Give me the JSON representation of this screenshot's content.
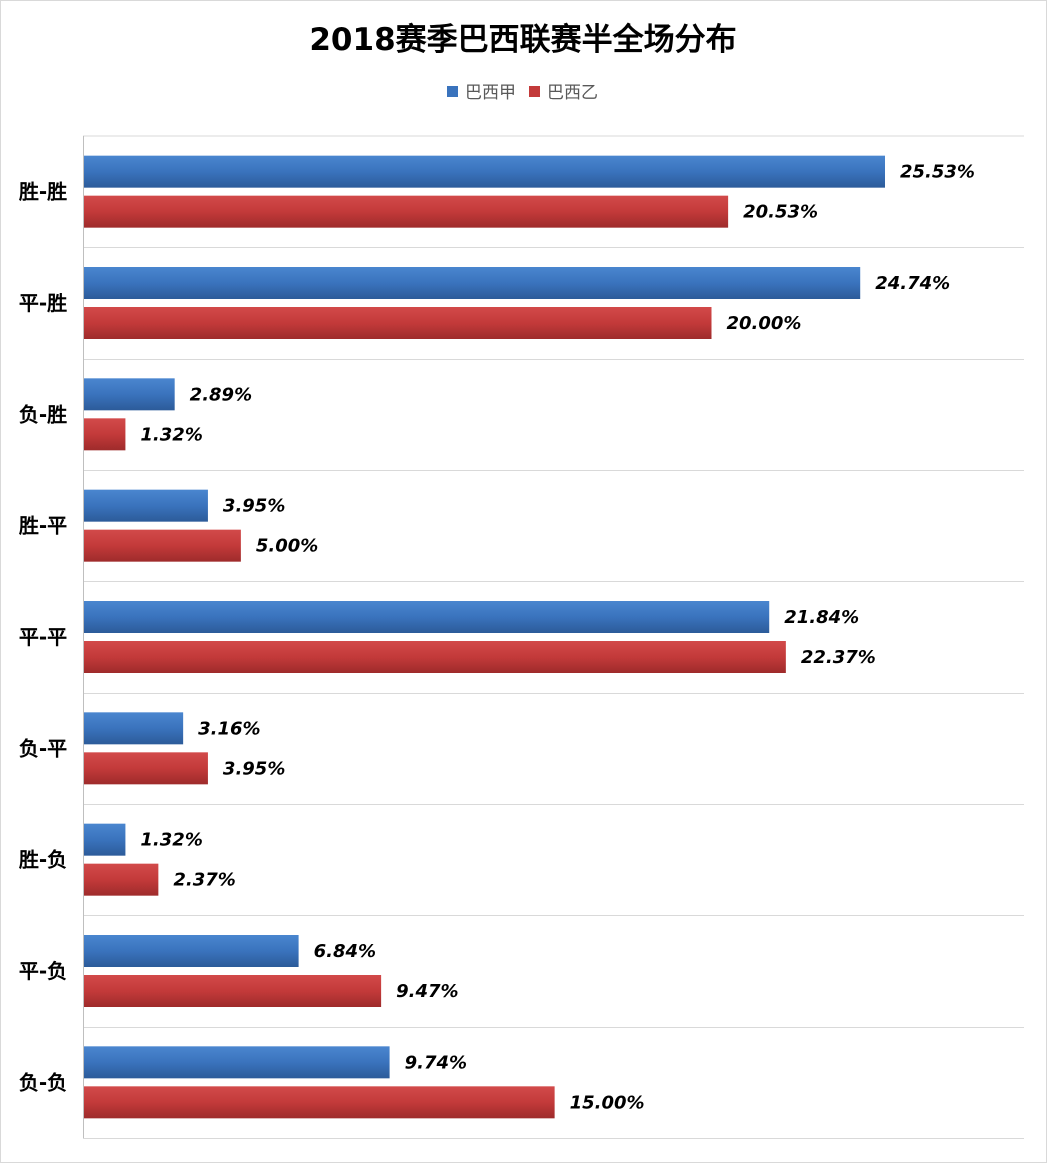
{
  "chart_data": {
    "type": "bar",
    "orientation": "horizontal",
    "title": "2018赛季巴西联赛半全场分布",
    "xlabel": "",
    "ylabel": "",
    "xlim": [
      0,
      28
    ],
    "grid": "horizontal category separators",
    "legend_position": "top-center",
    "categories": [
      "胜-胜",
      "平-胜",
      "负-胜",
      "胜-平",
      "平-平",
      "负-平",
      "胜-负",
      "平-负",
      "负-负"
    ],
    "series": [
      {
        "name": "巴西甲",
        "color": "#3a73bd",
        "values": [
          25.53,
          24.74,
          2.89,
          3.95,
          21.84,
          3.16,
          1.32,
          6.84,
          9.74
        ],
        "labels": [
          "25.53%",
          "24.74%",
          "2.89%",
          "3.95%",
          "21.84%",
          "3.16%",
          "1.32%",
          "6.84%",
          "9.74%"
        ]
      },
      {
        "name": "巴西乙",
        "color": "#c33a3a",
        "values": [
          20.53,
          20.0,
          1.32,
          5.0,
          22.37,
          3.95,
          2.37,
          9.47,
          15.0
        ],
        "labels": [
          "20.53%",
          "20.00%",
          "1.32%",
          "5.00%",
          "22.37%",
          "3.95%",
          "2.37%",
          "9.47%",
          "15.00%"
        ]
      }
    ]
  }
}
